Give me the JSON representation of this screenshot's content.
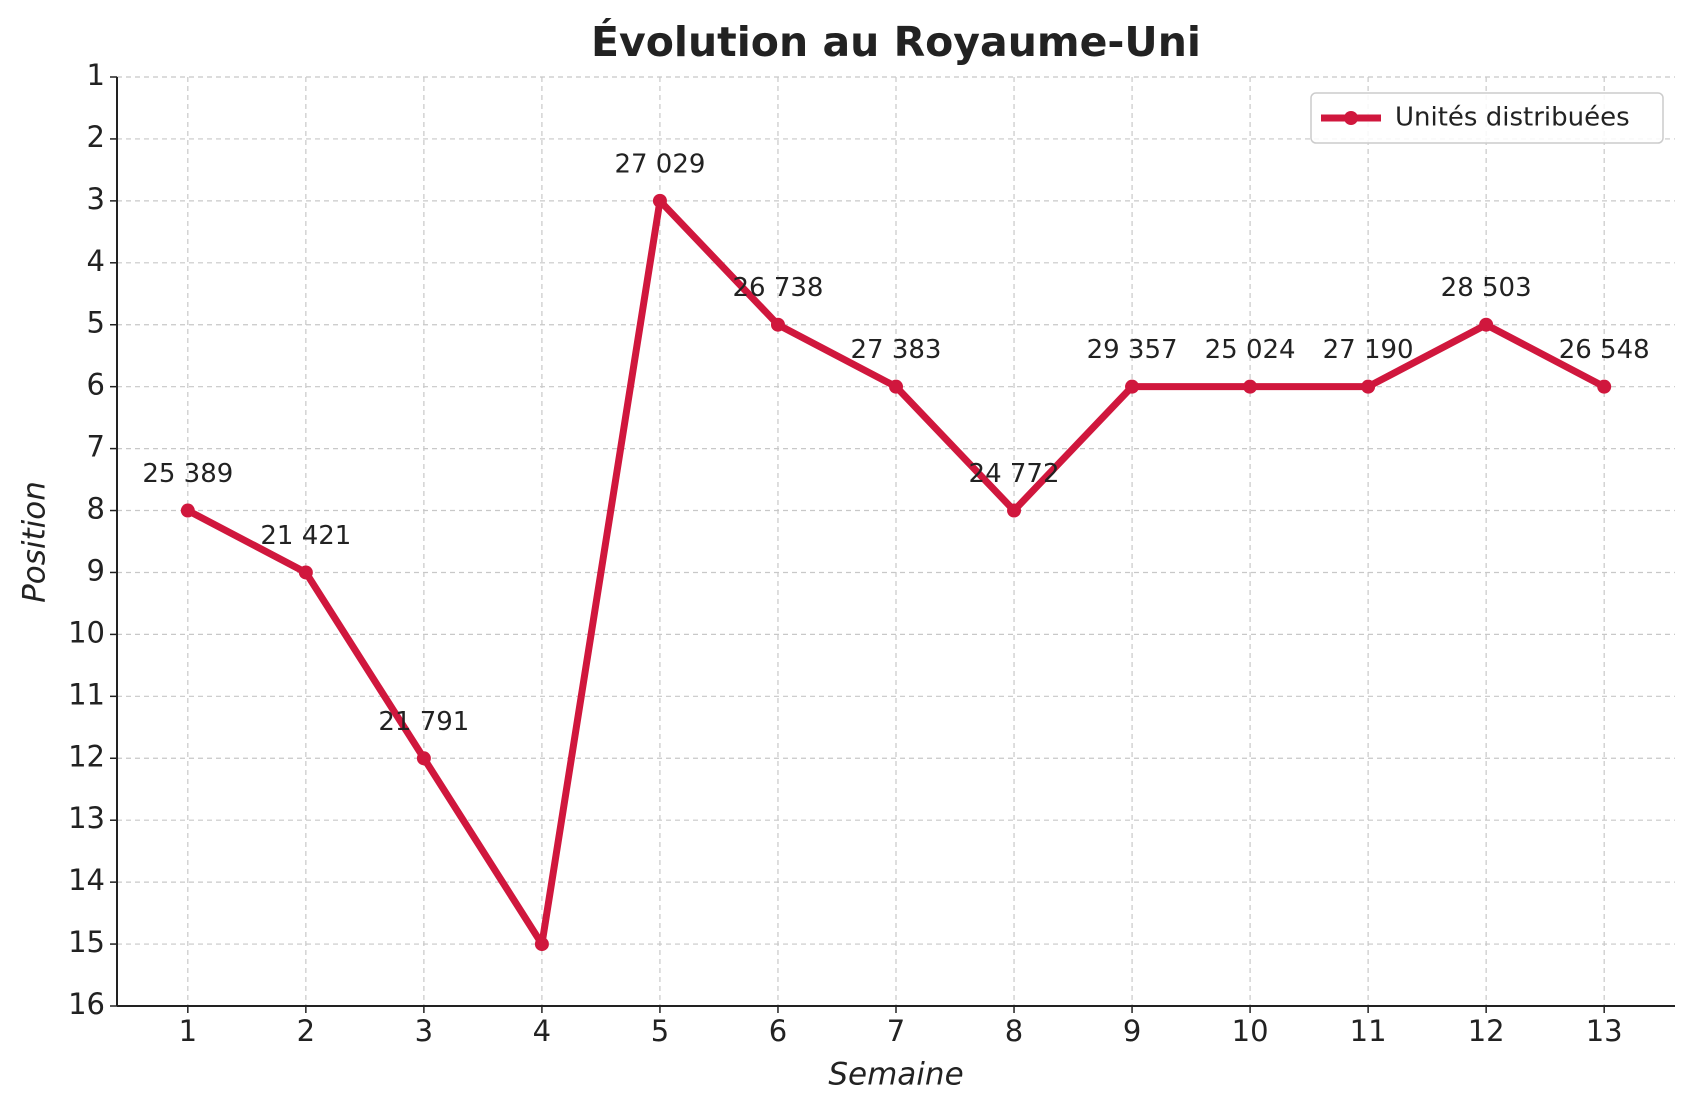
{
  "chart_data": {
    "type": "line",
    "title": "Évolution au Royaume-Uni",
    "x_label": "Semaine",
    "y_label": "Position",
    "x": [
      1,
      2,
      3,
      4,
      5,
      6,
      7,
      8,
      9,
      10,
      11,
      12,
      13
    ],
    "series": [
      {
        "name": "Unités distribuées",
        "color": "#d0173d",
        "values": [
          8,
          9,
          12,
          15,
          3,
          5,
          6,
          8,
          6,
          6,
          6,
          5,
          6
        ],
        "point_labels": [
          "25 389",
          "21 421",
          "21 791",
          null,
          "27 029",
          "26 738",
          "27 383",
          "24 772",
          "29 357",
          "25 024",
          "27 190",
          "28 503",
          "26 548"
        ]
      }
    ],
    "xlim": [
      0.4,
      13.6
    ],
    "xticks": [
      1,
      2,
      3,
      4,
      5,
      6,
      7,
      8,
      9,
      10,
      11,
      12,
      13
    ],
    "ylim": [
      16,
      1
    ],
    "yticks": [
      1,
      2,
      3,
      4,
      5,
      6,
      7,
      8,
      9,
      10,
      11,
      12,
      13,
      14,
      15,
      16
    ],
    "grid": true,
    "legend": "upper right"
  }
}
